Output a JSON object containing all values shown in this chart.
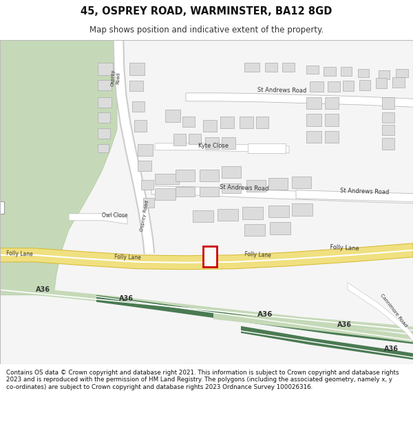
{
  "title": "45, OSPREY ROAD, WARMINSTER, BA12 8GD",
  "subtitle": "Map shows position and indicative extent of the property.",
  "footer": "Contains OS data © Crown copyright and database right 2021. This information is subject to Crown copyright and database rights 2023 and is reproduced with the permission of HM Land Registry. The polygons (including the associated geometry, namely x, y co-ordinates) are subject to Crown copyright and database rights 2023 Ordnance Survey 100026316.",
  "bg_color": "#ffffff",
  "map_bg": "#f8f8f8",
  "green_light": "#c5d9b8",
  "green_dark": "#4a7a52",
  "road_yellow_fill": "#f0e080",
  "road_yellow_border": "#d4b830",
  "building_fill": "#dcdcdc",
  "building_edge": "#aaaaaa",
  "highlight_red": "#cc0000",
  "road_white": "#ffffff",
  "road_gray": "#cccccc",
  "figsize": [
    6.0,
    6.25
  ],
  "dpi": 100
}
